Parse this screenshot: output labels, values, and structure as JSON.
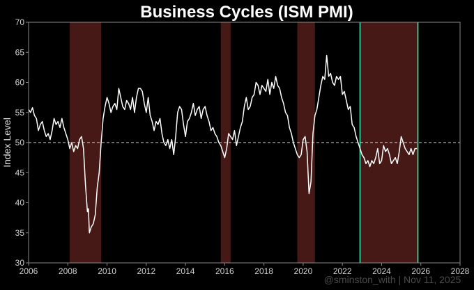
{
  "chart_data": {
    "type": "line",
    "title": "Business Cycles (ISM PMI)",
    "xlabel": "",
    "ylabel": "Index Level",
    "xlim": [
      2006,
      2028
    ],
    "ylim": [
      30,
      70
    ],
    "xticks": [
      2006,
      2008,
      2010,
      2012,
      2014,
      2016,
      2018,
      2020,
      2022,
      2024,
      2026,
      2028
    ],
    "yticks": [
      30,
      35,
      40,
      45,
      50,
      55,
      60,
      65,
      70
    ],
    "grid": false,
    "reference_line": {
      "y": 50,
      "style": "dashed"
    },
    "shaded_periods": [
      {
        "start": 2008.1,
        "end": 2009.7
      },
      {
        "start": 2015.8,
        "end": 2016.3
      },
      {
        "start": 2019.7,
        "end": 2020.6
      },
      {
        "start": 2022.9,
        "end": 2025.85
      }
    ],
    "vertical_markers": [
      2022.9,
      2025.85
    ],
    "series": [
      {
        "points": [
          [
            2006.0,
            55.5
          ],
          [
            2006.1,
            55.0
          ],
          [
            2006.2,
            55.8
          ],
          [
            2006.3,
            54.5
          ],
          [
            2006.4,
            54.0
          ],
          [
            2006.5,
            52.0
          ],
          [
            2006.6,
            53.0
          ],
          [
            2006.7,
            53.5
          ],
          [
            2006.8,
            52.0
          ],
          [
            2006.9,
            51.0
          ],
          [
            2007.0,
            51.5
          ],
          [
            2007.1,
            50.5
          ],
          [
            2007.2,
            52.0
          ],
          [
            2007.3,
            54.0
          ],
          [
            2007.4,
            53.0
          ],
          [
            2007.5,
            53.5
          ],
          [
            2007.6,
            52.5
          ],
          [
            2007.7,
            54.0
          ],
          [
            2007.8,
            52.5
          ],
          [
            2007.9,
            51.5
          ],
          [
            2008.0,
            50.5
          ],
          [
            2008.1,
            49.0
          ],
          [
            2008.2,
            50.0
          ],
          [
            2008.3,
            48.5
          ],
          [
            2008.4,
            49.5
          ],
          [
            2008.5,
            49.0
          ],
          [
            2008.6,
            50.5
          ],
          [
            2008.7,
            51.0
          ],
          [
            2008.8,
            49.0
          ],
          [
            2008.9,
            43.0
          ],
          [
            2009.0,
            38.5
          ],
          [
            2009.05,
            39.0
          ],
          [
            2009.1,
            35.0
          ],
          [
            2009.2,
            36.0
          ],
          [
            2009.3,
            36.5
          ],
          [
            2009.4,
            38.0
          ],
          [
            2009.5,
            42.5
          ],
          [
            2009.6,
            45.0
          ],
          [
            2009.7,
            50.0
          ],
          [
            2009.8,
            54.0
          ],
          [
            2009.9,
            56.0
          ],
          [
            2010.0,
            57.5
          ],
          [
            2010.1,
            56.5
          ],
          [
            2010.2,
            55.0
          ],
          [
            2010.3,
            56.0
          ],
          [
            2010.4,
            56.5
          ],
          [
            2010.5,
            55.5
          ],
          [
            2010.6,
            59.0
          ],
          [
            2010.7,
            57.5
          ],
          [
            2010.8,
            56.0
          ],
          [
            2010.9,
            55.5
          ],
          [
            2011.0,
            57.0
          ],
          [
            2011.1,
            56.5
          ],
          [
            2011.2,
            55.5
          ],
          [
            2011.3,
            57.5
          ],
          [
            2011.4,
            55.0
          ],
          [
            2011.5,
            57.5
          ],
          [
            2011.6,
            59.0
          ],
          [
            2011.7,
            59.0
          ],
          [
            2011.8,
            58.5
          ],
          [
            2011.9,
            56.5
          ],
          [
            2012.0,
            55.0
          ],
          [
            2012.1,
            57.5
          ],
          [
            2012.2,
            54.5
          ],
          [
            2012.3,
            53.5
          ],
          [
            2012.4,
            52.0
          ],
          [
            2012.5,
            53.5
          ],
          [
            2012.6,
            53.0
          ],
          [
            2012.7,
            54.0
          ],
          [
            2012.8,
            51.5
          ],
          [
            2012.9,
            50.0
          ],
          [
            2013.0,
            49.5
          ],
          [
            2013.1,
            50.5
          ],
          [
            2013.2,
            49.0
          ],
          [
            2013.3,
            50.5
          ],
          [
            2013.4,
            48.0
          ],
          [
            2013.5,
            51.0
          ],
          [
            2013.6,
            55.0
          ],
          [
            2013.7,
            56.0
          ],
          [
            2013.8,
            55.5
          ],
          [
            2013.9,
            53.0
          ],
          [
            2014.0,
            51.0
          ],
          [
            2014.1,
            53.5
          ],
          [
            2014.2,
            54.0
          ],
          [
            2014.3,
            55.0
          ],
          [
            2014.4,
            56.5
          ],
          [
            2014.5,
            54.5
          ],
          [
            2014.6,
            55.5
          ],
          [
            2014.7,
            56.0
          ],
          [
            2014.8,
            54.0
          ],
          [
            2014.9,
            55.5
          ],
          [
            2015.0,
            56.0
          ],
          [
            2015.1,
            54.5
          ],
          [
            2015.2,
            53.5
          ],
          [
            2015.3,
            52.0
          ],
          [
            2015.4,
            52.5
          ],
          [
            2015.5,
            51.5
          ],
          [
            2015.6,
            51.0
          ],
          [
            2015.7,
            50.0
          ],
          [
            2015.8,
            49.5
          ],
          [
            2015.9,
            48.5
          ],
          [
            2016.0,
            47.5
          ],
          [
            2016.1,
            49.0
          ],
          [
            2016.2,
            51.5
          ],
          [
            2016.3,
            51.0
          ],
          [
            2016.4,
            50.5
          ],
          [
            2016.5,
            52.0
          ],
          [
            2016.6,
            49.5
          ],
          [
            2016.7,
            51.0
          ],
          [
            2016.8,
            52.5
          ],
          [
            2016.9,
            53.5
          ],
          [
            2017.0,
            56.0
          ],
          [
            2017.1,
            57.5
          ],
          [
            2017.2,
            55.5
          ],
          [
            2017.3,
            56.0
          ],
          [
            2017.4,
            57.5
          ],
          [
            2017.5,
            58.0
          ],
          [
            2017.6,
            60.0
          ],
          [
            2017.7,
            59.5
          ],
          [
            2017.8,
            58.0
          ],
          [
            2017.9,
            59.5
          ],
          [
            2018.0,
            59.0
          ],
          [
            2018.1,
            58.5
          ],
          [
            2018.2,
            60.5
          ],
          [
            2018.3,
            58.0
          ],
          [
            2018.4,
            60.0
          ],
          [
            2018.5,
            59.0
          ],
          [
            2018.6,
            61.0
          ],
          [
            2018.7,
            59.5
          ],
          [
            2018.8,
            59.0
          ],
          [
            2018.9,
            57.5
          ],
          [
            2019.0,
            56.5
          ],
          [
            2019.1,
            55.0
          ],
          [
            2019.2,
            54.5
          ],
          [
            2019.3,
            52.5
          ],
          [
            2019.4,
            51.5
          ],
          [
            2019.5,
            50.0
          ],
          [
            2019.6,
            49.0
          ],
          [
            2019.7,
            48.0
          ],
          [
            2019.8,
            47.5
          ],
          [
            2019.9,
            48.0
          ],
          [
            2020.0,
            50.5
          ],
          [
            2020.1,
            51.0
          ],
          [
            2020.2,
            48.5
          ],
          [
            2020.3,
            41.5
          ],
          [
            2020.4,
            43.5
          ],
          [
            2020.5,
            51.5
          ],
          [
            2020.6,
            54.5
          ],
          [
            2020.7,
            55.5
          ],
          [
            2020.8,
            57.5
          ],
          [
            2020.9,
            59.5
          ],
          [
            2021.0,
            61.0
          ],
          [
            2021.1,
            60.5
          ],
          [
            2021.2,
            64.5
          ],
          [
            2021.3,
            61.0
          ],
          [
            2021.4,
            61.5
          ],
          [
            2021.5,
            60.0
          ],
          [
            2021.6,
            59.5
          ],
          [
            2021.7,
            61.0
          ],
          [
            2021.8,
            60.5
          ],
          [
            2021.9,
            61.0
          ],
          [
            2022.0,
            58.0
          ],
          [
            2022.1,
            58.5
          ],
          [
            2022.2,
            57.0
          ],
          [
            2022.3,
            55.5
          ],
          [
            2022.4,
            56.0
          ],
          [
            2022.5,
            53.0
          ],
          [
            2022.6,
            52.5
          ],
          [
            2022.7,
            51.0
          ],
          [
            2022.8,
            50.0
          ],
          [
            2022.9,
            49.0
          ],
          [
            2023.0,
            48.0
          ],
          [
            2023.1,
            47.5
          ],
          [
            2023.2,
            46.5
          ],
          [
            2023.3,
            47.0
          ],
          [
            2023.4,
            46.0
          ],
          [
            2023.5,
            47.0
          ],
          [
            2023.6,
            46.5
          ],
          [
            2023.7,
            47.5
          ],
          [
            2023.8,
            49.0
          ],
          [
            2023.9,
            46.5
          ],
          [
            2024.0,
            47.0
          ],
          [
            2024.1,
            49.5
          ],
          [
            2024.2,
            48.5
          ],
          [
            2024.3,
            49.0
          ],
          [
            2024.4,
            48.0
          ],
          [
            2024.5,
            46.5
          ],
          [
            2024.6,
            47.0
          ],
          [
            2024.7,
            47.5
          ],
          [
            2024.8,
            46.5
          ],
          [
            2024.9,
            48.5
          ],
          [
            2025.0,
            51.0
          ],
          [
            2025.1,
            50.0
          ],
          [
            2025.2,
            49.0
          ],
          [
            2025.3,
            48.5
          ],
          [
            2025.4,
            48.0
          ],
          [
            2025.5,
            49.0
          ],
          [
            2025.6,
            48.0
          ],
          [
            2025.7,
            49.0
          ],
          [
            2025.8,
            49.0
          ]
        ]
      }
    ]
  },
  "watermark": "@sminston_with  |  Nov 11, 2025",
  "colors": {
    "background": "#000000",
    "line": "#ffffff",
    "shade": "#4a1a17",
    "marker": "#3ee8b0",
    "axis": "#888888",
    "reference": "#ffffff"
  }
}
